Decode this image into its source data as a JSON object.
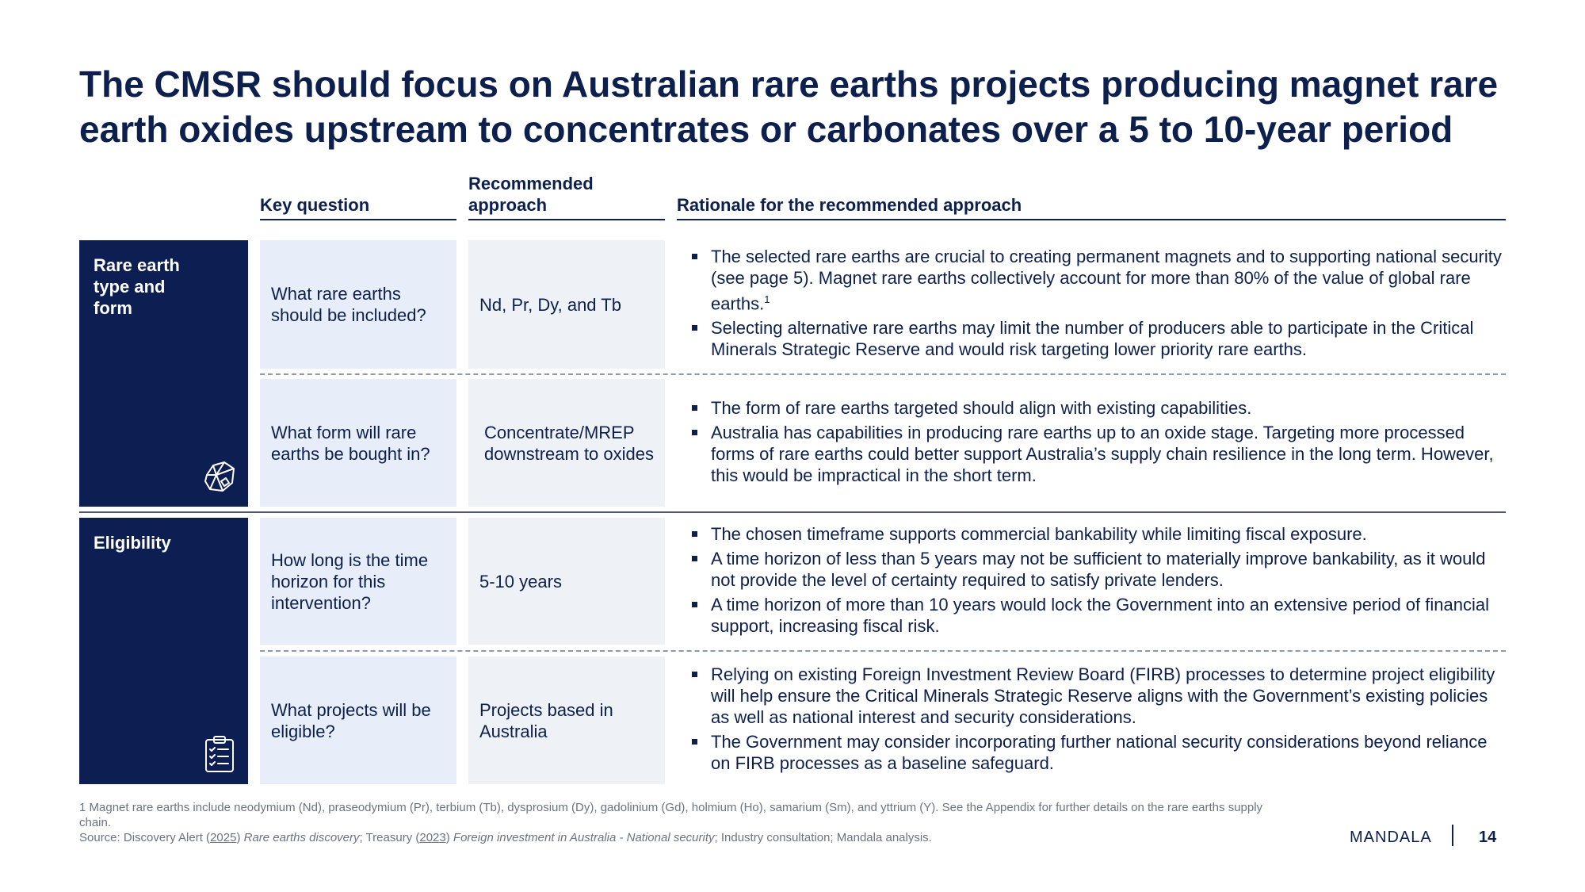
{
  "title": "The CMSR should focus on Australian rare earths projects producing magnet rare earth oxides upstream to concentrates or carbonates over a 5 to 10-year period",
  "headers": {
    "key_question": "Key question",
    "recommended_approach": "Recommended approach",
    "rationale": "Rationale for the recommended approach"
  },
  "sections": [
    {
      "label": "Rare earth type and form",
      "icon": "rock-ore-icon"
    },
    {
      "label": "Eligibility",
      "icon": "clipboard-checklist-icon"
    }
  ],
  "rows": [
    {
      "question": "What rare earths should be included?",
      "approach": "Nd, Pr, Dy, and Tb",
      "rationale": [
        "The selected rare earths are crucial to creating permanent magnets and to supporting national security (see page 5). Magnet rare earths collectively account for more than 80% of the value of global rare earths.",
        "Selecting alternative rare earths may limit the number of producers able to participate in the Critical Minerals Strategic Reserve and would risk targeting lower priority rare earths."
      ],
      "footnote_ref": "1"
    },
    {
      "question": "What form will rare earths be bought in?",
      "approach": "Concentrate/MREP downstream to oxides",
      "rationale": [
        "The form of rare earths targeted should align with existing capabilities.",
        "Australia has capabilities in producing rare earths up to an oxide stage. Targeting more processed forms of rare earths could better support Australia’s supply chain resilience in the long term. However, this would be impractical in the short term."
      ]
    },
    {
      "question": "How long is the time horizon for this intervention?",
      "approach": "5-10 years",
      "rationale": [
        "The chosen timeframe supports commercial bankability while limiting fiscal exposure.",
        "A time horizon of less than 5 years may not be sufficient to materially improve bankability, as it would not provide the level of certainty required to satisfy private lenders.",
        "A time horizon of more than 10 years would lock the Government into an extensive period of financial support, increasing fiscal risk."
      ]
    },
    {
      "question": "What projects will be eligible?",
      "approach": "Projects based in Australia",
      "rationale": [
        "Relying on existing Foreign Investment Review Board (FIRB) processes to determine project eligibility will help ensure the Critical Minerals Strategic Reserve aligns with the Government’s existing policies as well as national interest and security considerations.",
        "The Government may consider incorporating further national security considerations beyond reliance on FIRB processes as a baseline safeguard."
      ]
    }
  ],
  "footnote": "1 Magnet rare earths include neodymium (Nd), praseodymium (Pr), terbium (Tb), dysprosium (Dy), gadolinium (Gd), holmium (Ho), samarium (Sm), and yttrium (Y). See the Appendix for further details on the rare earths supply chain.",
  "source": {
    "prefix": "Source: Discovery Alert (",
    "year1": "2025",
    "mid1": ") ",
    "title1": "Rare earths discovery",
    "mid2": "; Treasury (",
    "year2": "2023",
    "mid3": ") ",
    "title2": "Foreign investment in Australia - National security",
    "suffix": "; Industry consultation; Mandala analysis."
  },
  "brand": "MANDALA",
  "page_number": "14",
  "colors": {
    "navy": "#0c1e52",
    "question_bg": "#e8eef9",
    "approach_bg": "#eef1f6",
    "text": "#0d1f4d"
  }
}
